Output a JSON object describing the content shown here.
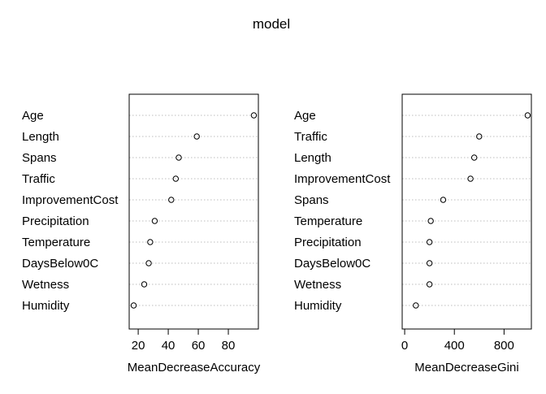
{
  "title": "model",
  "chart_data": [
    {
      "type": "dotchart",
      "xlabel": "MeanDecreaseAccuracy",
      "xlim": [
        14,
        100
      ],
      "ticks": [
        20,
        40,
        60,
        80
      ],
      "categories": [
        "Age",
        "Length",
        "Spans",
        "Traffic",
        "ImprovementCost",
        "Precipitation",
        "Temperature",
        "DaysBelow0C",
        "Wetness",
        "Humidity"
      ],
      "values": [
        97,
        59,
        47,
        45,
        42,
        31,
        28,
        27,
        24,
        17
      ]
    },
    {
      "type": "dotchart",
      "xlabel": "MeanDecreaseGini",
      "xlim": [
        -20,
        1020
      ],
      "ticks": [
        0,
        400,
        800
      ],
      "categories": [
        "Age",
        "Traffic",
        "Length",
        "ImprovementCost",
        "Spans",
        "Temperature",
        "Precipitation",
        "DaysBelow0C",
        "Wetness",
        "Humidity"
      ],
      "values": [
        990,
        600,
        560,
        530,
        310,
        210,
        200,
        200,
        200,
        90
      ]
    }
  ]
}
